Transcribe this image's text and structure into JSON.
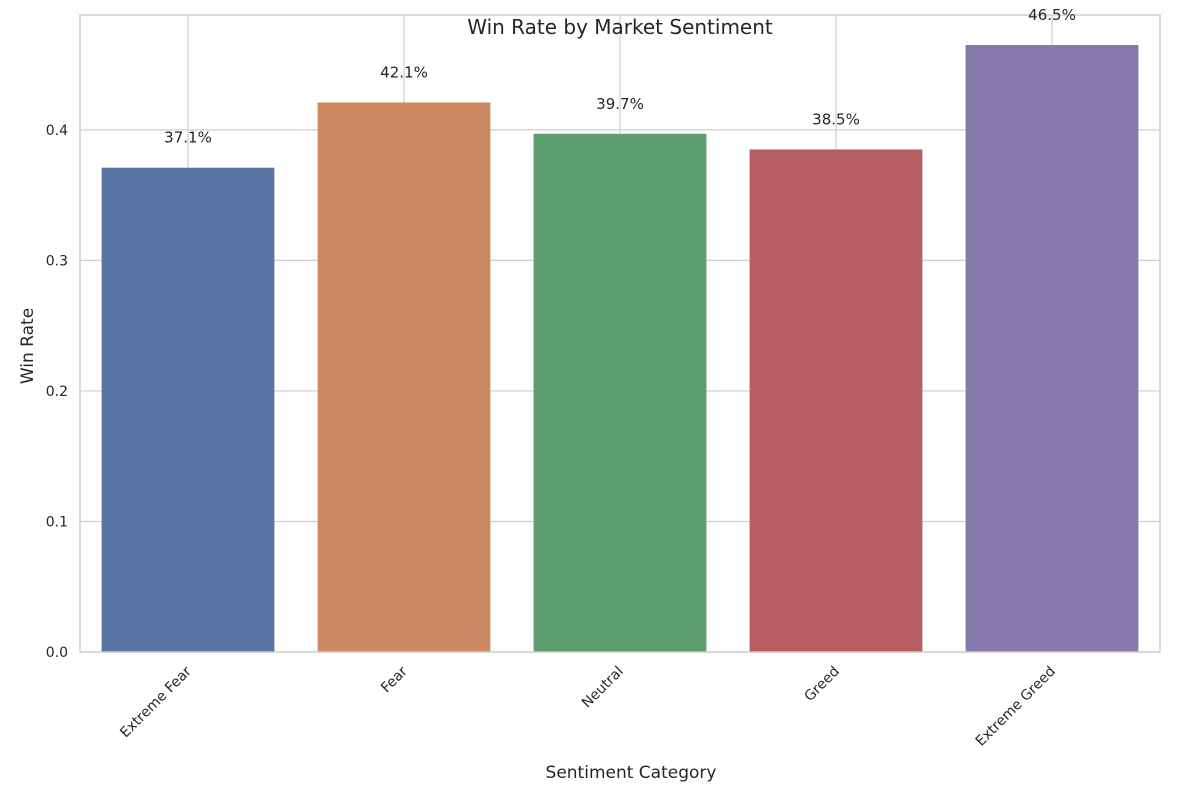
{
  "chart_data": {
    "type": "bar",
    "title": "Win Rate by Market Sentiment",
    "xlabel": "Sentiment Category",
    "ylabel": "Win Rate",
    "categories": [
      "Extreme Fear",
      "Fear",
      "Neutral",
      "Greed",
      "Extreme Greed"
    ],
    "values": [
      0.371,
      0.421,
      0.397,
      0.385,
      0.465
    ],
    "data_labels": [
      "37.1%",
      "42.1%",
      "39.7%",
      "38.5%",
      "46.5%"
    ],
    "colors": [
      "#5875a4",
      "#cc8963",
      "#5f9e6e",
      "#b55d60",
      "#857aab"
    ],
    "yticks": [
      0.0,
      0.1,
      0.2,
      0.3,
      0.4
    ],
    "ytick_labels": [
      "0.0",
      "0.1",
      "0.2",
      "0.3",
      "0.4"
    ],
    "ylim": [
      0,
      0.488
    ],
    "grid": true,
    "xtick_rotation_deg": 45
  }
}
